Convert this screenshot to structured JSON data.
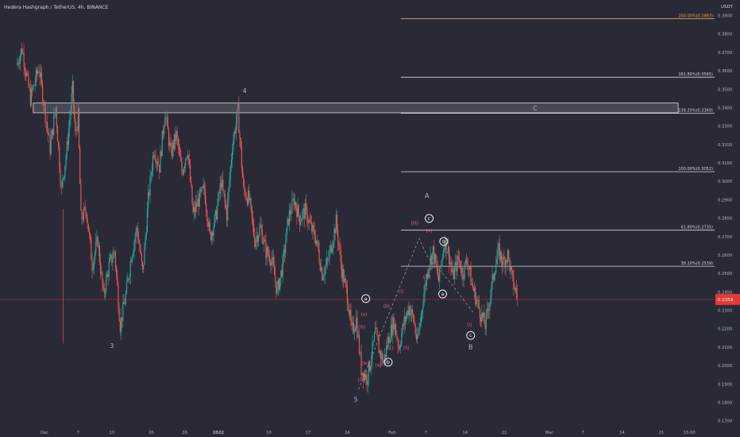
{
  "header": {
    "title": "Hedera Hashgraph / TetherUS, 4h, BINANCE",
    "currency": "USDT"
  },
  "colors": {
    "background": "#2a2a37",
    "up": "#26a69a",
    "down": "#ef5350",
    "fib_line": "#d9d9d9",
    "fib_top": "#e0a55a",
    "label_grey": "#b2b5be",
    "wave_red": "#f05a7a",
    "price_line": "#e53935"
  },
  "current_price": "0.2359",
  "chart_data": {
    "type": "candlestick",
    "y_axis": {
      "min": 0.17,
      "max": 0.39,
      "ticks": [
        "0.1700",
        "0.1800",
        "0.1900",
        "0.2000",
        "0.2100",
        "0.2200",
        "0.2300",
        "0.2400",
        "0.2500",
        "0.2600",
        "0.2700",
        "0.2800",
        "0.2900",
        "0.3000",
        "0.3100",
        "0.3200",
        "0.3300",
        "0.3400",
        "0.3500",
        "0.3600",
        "0.3700",
        "0.3800",
        "0.3900"
      ]
    },
    "x_axis": {
      "ticks": [
        {
          "label": "Dec",
          "d": 0
        },
        {
          "label": "7",
          "d": 6
        },
        {
          "label": "13",
          "d": 12
        },
        {
          "label": "20",
          "d": 19
        },
        {
          "label": "26",
          "d": 25
        },
        {
          "label": "2022",
          "d": 31
        },
        {
          "label": "10",
          "d": 40
        },
        {
          "label": "17",
          "d": 47
        },
        {
          "label": "24",
          "d": 54
        },
        {
          "label": "Feb",
          "d": 62
        },
        {
          "label": "7",
          "d": 68
        },
        {
          "label": "14",
          "d": 75
        },
        {
          "label": "21",
          "d": 82
        },
        {
          "label": "Mar",
          "d": 90
        },
        {
          "label": "7",
          "d": 96
        },
        {
          "label": "14",
          "d": 103
        },
        {
          "label": "21",
          "d": 110
        },
        {
          "label": "15:00",
          "d": 115
        }
      ]
    },
    "path": [
      {
        "d": -5.0,
        "p": 0.363
      },
      {
        "d": -4.0,
        "p": 0.372
      },
      {
        "d": -2.5,
        "p": 0.345
      },
      {
        "d": -1.0,
        "p": 0.362
      },
      {
        "d": 1.0,
        "p": 0.318
      },
      {
        "d": 2.0,
        "p": 0.34
      },
      {
        "d": 3.0,
        "p": 0.295
      },
      {
        "d": 4.0,
        "p": 0.318
      },
      {
        "d": 5.0,
        "p": 0.35
      },
      {
        "d": 5.5,
        "p": 0.325
      },
      {
        "d": 6.0,
        "p": 0.335
      },
      {
        "d": 6.5,
        "p": 0.28
      },
      {
        "d": 7.5,
        "p": 0.284
      },
      {
        "d": 8.5,
        "p": 0.255
      },
      {
        "d": 9.5,
        "p": 0.268
      },
      {
        "d": 10.5,
        "p": 0.238
      },
      {
        "d": 11.5,
        "p": 0.254
      },
      {
        "d": 12.5,
        "p": 0.262
      },
      {
        "d": 13.5,
        "p": 0.222
      },
      {
        "d": 14.5,
        "p": 0.238
      },
      {
        "d": 15.5,
        "p": 0.26
      },
      {
        "d": 16.5,
        "p": 0.275
      },
      {
        "d": 17.5,
        "p": 0.25
      },
      {
        "d": 18.5,
        "p": 0.29
      },
      {
        "d": 19.5,
        "p": 0.318
      },
      {
        "d": 20.5,
        "p": 0.308
      },
      {
        "d": 21.5,
        "p": 0.338
      },
      {
        "d": 22.5,
        "p": 0.315
      },
      {
        "d": 23.5,
        "p": 0.325
      },
      {
        "d": 24.5,
        "p": 0.305
      },
      {
        "d": 25.5,
        "p": 0.318
      },
      {
        "d": 26.5,
        "p": 0.282
      },
      {
        "d": 27.5,
        "p": 0.29
      },
      {
        "d": 28.5,
        "p": 0.296
      },
      {
        "d": 29.5,
        "p": 0.27
      },
      {
        "d": 30.5,
        "p": 0.28
      },
      {
        "d": 31.5,
        "p": 0.3
      },
      {
        "d": 32.5,
        "p": 0.282
      },
      {
        "d": 33.5,
        "p": 0.32
      },
      {
        "d": 34.5,
        "p": 0.338
      },
      {
        "d": 35.5,
        "p": 0.295
      },
      {
        "d": 36.5,
        "p": 0.29
      },
      {
        "d": 37.5,
        "p": 0.268
      },
      {
        "d": 38.5,
        "p": 0.275
      },
      {
        "d": 39.5,
        "p": 0.262
      },
      {
        "d": 40.5,
        "p": 0.258
      },
      {
        "d": 41.5,
        "p": 0.24
      },
      {
        "d": 42.5,
        "p": 0.255
      },
      {
        "d": 43.5,
        "p": 0.28
      },
      {
        "d": 44.5,
        "p": 0.29
      },
      {
        "d": 45.5,
        "p": 0.28
      },
      {
        "d": 46.5,
        "p": 0.284
      },
      {
        "d": 47.5,
        "p": 0.275
      },
      {
        "d": 48.5,
        "p": 0.268
      },
      {
        "d": 49.5,
        "p": 0.25
      },
      {
        "d": 50.5,
        "p": 0.256
      },
      {
        "d": 51.5,
        "p": 0.27
      },
      {
        "d": 52.0,
        "p": 0.278
      },
      {
        "d": 53.0,
        "p": 0.252
      },
      {
        "d": 54.0,
        "p": 0.238
      },
      {
        "d": 54.8,
        "p": 0.218
      },
      {
        "d": 55.6,
        "p": 0.225
      },
      {
        "d": 56.5,
        "p": 0.198
      },
      {
        "d": 57.5,
        "p": 0.193
      },
      {
        "d": 58.3,
        "p": 0.205
      },
      {
        "d": 59.0,
        "p": 0.218
      },
      {
        "d": 59.8,
        "p": 0.207
      },
      {
        "d": 60.5,
        "p": 0.202
      },
      {
        "d": 61.3,
        "p": 0.214
      },
      {
        "d": 62.3,
        "p": 0.224
      },
      {
        "d": 63.2,
        "p": 0.21
      },
      {
        "d": 64.0,
        "p": 0.222
      },
      {
        "d": 65.0,
        "p": 0.232
      },
      {
        "d": 65.8,
        "p": 0.225
      },
      {
        "d": 66.5,
        "p": 0.212
      },
      {
        "d": 67.5,
        "p": 0.236
      },
      {
        "d": 68.5,
        "p": 0.255
      },
      {
        "d": 69.3,
        "p": 0.262
      },
      {
        "d": 70.3,
        "p": 0.246
      },
      {
        "d": 71.3,
        "p": 0.268
      },
      {
        "d": 72.0,
        "p": 0.262
      },
      {
        "d": 72.8,
        "p": 0.248
      },
      {
        "d": 73.8,
        "p": 0.258
      },
      {
        "d": 74.6,
        "p": 0.25
      },
      {
        "d": 75.4,
        "p": 0.258
      },
      {
        "d": 76.2,
        "p": 0.244
      },
      {
        "d": 77.0,
        "p": 0.236
      },
      {
        "d": 77.8,
        "p": 0.228
      },
      {
        "d": 78.6,
        "p": 0.222
      },
      {
        "d": 79.4,
        "p": 0.236
      },
      {
        "d": 80.2,
        "p": 0.252
      },
      {
        "d": 81.0,
        "p": 0.262
      },
      {
        "d": 81.8,
        "p": 0.256
      },
      {
        "d": 82.6,
        "p": 0.26
      },
      {
        "d": 83.5,
        "p": 0.245
      },
      {
        "d": 84.3,
        "p": 0.238
      }
    ],
    "fibonacci": [
      {
        "label": "200.00%(0.3883)",
        "value": 0.3883,
        "top": true
      },
      {
        "label": "161.80%(0.3565)",
        "value": 0.3565
      },
      {
        "label": "138.20%(0.3369)",
        "value": 0.3369
      },
      {
        "label": "100.00%(0.3052)",
        "value": 0.3052
      },
      {
        "label": "61.80%(0.2735)",
        "value": 0.2735
      },
      {
        "label": "38.20%(0.2539)",
        "value": 0.2539
      }
    ],
    "resistance_zone": {
      "top": 0.3425,
      "bottom": 0.3372,
      "d_start": -2.0,
      "d_end": 113.0
    },
    "projection_path": [
      {
        "d": 56.0,
        "p": 0.187
      },
      {
        "d": 66.8,
        "p": 0.269
      },
      {
        "d": 68.3,
        "p": 0.259
      },
      {
        "d": 72.4,
        "p": 0.245
      },
      {
        "d": 76.4,
        "p": 0.229
      }
    ],
    "wave_labels": [
      {
        "text": "3",
        "d": 12.0,
        "p": 0.2095,
        "color": "grey"
      },
      {
        "text": "4",
        "d": 35.7,
        "p": 0.348,
        "color": "grey"
      },
      {
        "text": "5",
        "d": 55.5,
        "p": 0.1805,
        "color": "grey"
      },
      {
        "text": "A",
        "d": 68.2,
        "p": 0.291,
        "color": "grey"
      },
      {
        "text": "B",
        "d": 76.0,
        "p": 0.209,
        "color": "grey"
      },
      {
        "text": "C",
        "d": 87.5,
        "p": 0.3385,
        "color": "grey"
      },
      {
        "text": "a",
        "d": 57.3,
        "p": 0.2355,
        "color": "white",
        "circled": true
      },
      {
        "text": "b",
        "d": 61.3,
        "p": 0.201,
        "color": "white",
        "circled": true
      },
      {
        "text": "c",
        "d": 68.6,
        "p": 0.279,
        "color": "white",
        "circled": true
      },
      {
        "text": "b",
        "d": 71.2,
        "p": 0.2665,
        "color": "white",
        "circled": true
      },
      {
        "text": "a",
        "d": 71.0,
        "p": 0.238,
        "color": "white",
        "circled": true
      },
      {
        "text": "c",
        "d": 76.0,
        "p": 0.2155,
        "color": "white",
        "circled": true
      },
      {
        "text": "(v)",
        "d": 57.0,
        "p": 0.227,
        "color": "red"
      },
      {
        "text": "(iii)",
        "d": 56.6,
        "p": 0.22,
        "color": "red"
      },
      {
        "text": "(iv)",
        "d": 57.2,
        "p": 0.2005,
        "color": "red"
      },
      {
        "text": "(ii)",
        "d": 56.4,
        "p": 0.1915,
        "color": "red"
      },
      {
        "text": "(a)",
        "d": 59.5,
        "p": 0.1995,
        "color": "red"
      },
      {
        "text": "(b)",
        "d": 61.0,
        "p": 0.2315,
        "color": "red"
      },
      {
        "text": "(c)",
        "d": 61.7,
        "p": 0.209,
        "color": "red"
      },
      {
        "text": "(i)",
        "d": 63.6,
        "p": 0.2395,
        "color": "red"
      },
      {
        "text": "(ii)",
        "d": 64.5,
        "p": 0.209,
        "color": "red"
      },
      {
        "text": "(iii)",
        "d": 66.0,
        "p": 0.2765,
        "color": "red"
      },
      {
        "text": "(v)",
        "d": 68.6,
        "p": 0.2725,
        "color": "red"
      },
      {
        "text": "(iv)",
        "d": 68.2,
        "p": 0.2475,
        "color": "red"
      },
      {
        "text": "(i)",
        "d": 75.8,
        "p": 0.2215,
        "color": "red"
      }
    ]
  }
}
